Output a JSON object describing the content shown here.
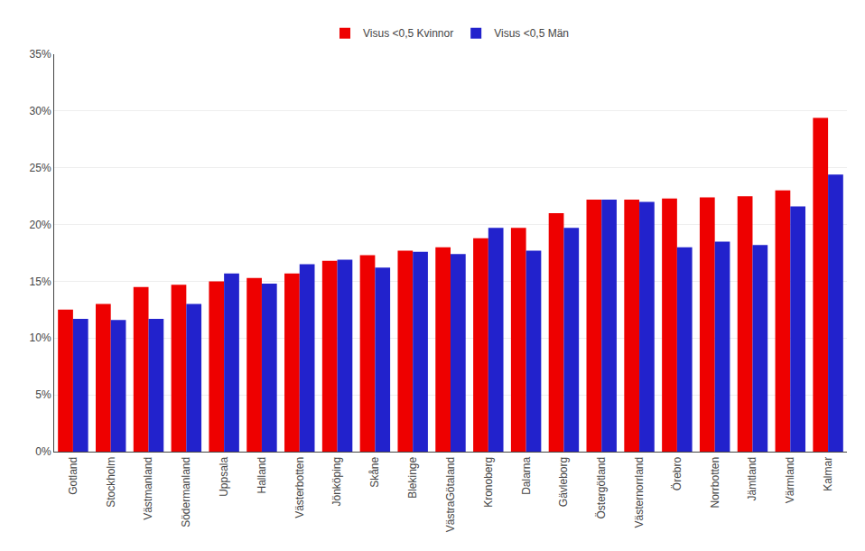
{
  "chart_data": {
    "type": "bar",
    "categories": [
      "Gotland",
      "Stockholm",
      "Västmanland",
      "Södermanland",
      "Uppsala",
      "Halland",
      "Västerbotten",
      "Jönköping",
      "Skåne",
      "Blekinge",
      "VästraGötaland",
      "Kronoberg",
      "Dalarna",
      "Gävleborg",
      "Östergötland",
      "Västernorrland",
      "Örebro",
      "Norrbotten",
      "Jämtland",
      "Värmland",
      "Kalmar"
    ],
    "series": [
      {
        "name": "Visus <0,5 Kvinnor",
        "color": "#EE0000",
        "values": [
          12.5,
          13.0,
          14.5,
          14.7,
          15.0,
          15.3,
          15.7,
          16.8,
          17.3,
          17.7,
          18.0,
          18.8,
          19.7,
          21.0,
          22.2,
          22.2,
          22.3,
          22.4,
          22.5,
          23.0,
          29.4
        ]
      },
      {
        "name": "Visus <0,5 Män",
        "color": "#2222CC",
        "values": [
          11.7,
          11.6,
          11.7,
          13.0,
          15.7,
          14.8,
          16.5,
          16.9,
          16.2,
          17.6,
          17.4,
          19.7,
          17.7,
          19.7,
          22.2,
          22.0,
          18.0,
          18.5,
          18.2,
          21.6,
          24.4
        ]
      }
    ],
    "ylim": [
      0,
      35
    ],
    "yticks": [
      {
        "value": 0,
        "label": "0%"
      },
      {
        "value": 5,
        "label": "5%"
      },
      {
        "value": 10,
        "label": "10%"
      },
      {
        "value": 15,
        "label": "15%"
      },
      {
        "value": 20,
        "label": "20%"
      },
      {
        "value": 25,
        "label": "25%"
      },
      {
        "value": 30,
        "label": "30%"
      },
      {
        "value": 35,
        "label": "35%"
      }
    ],
    "grid": true,
    "legend": "top"
  }
}
